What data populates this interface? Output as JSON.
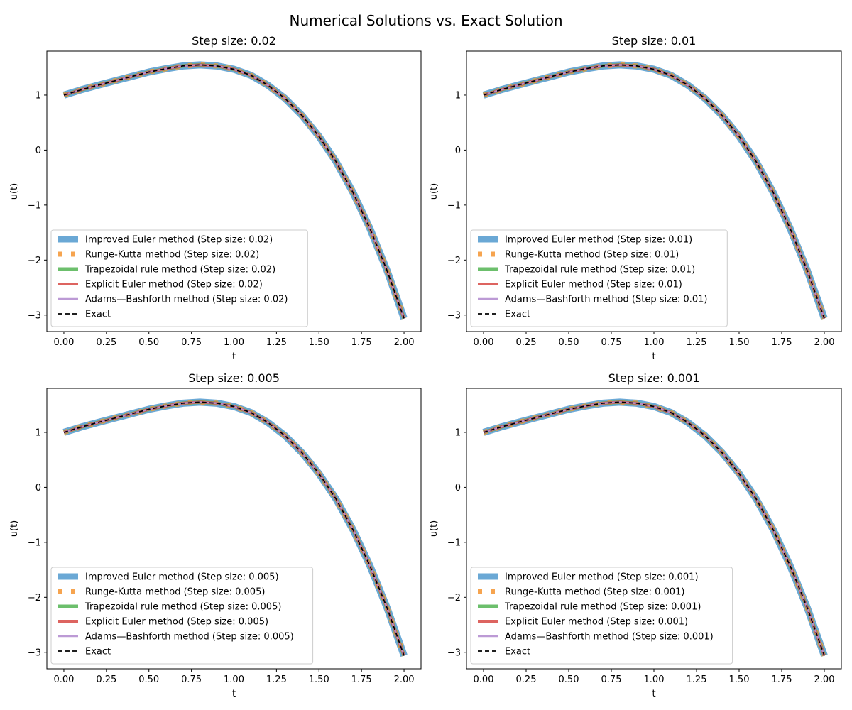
{
  "figure": {
    "title": "Numerical Solutions vs. Exact Solution"
  },
  "series_styles": [
    {
      "key": "improved_euler",
      "color": "#5a9fd0",
      "dash": "",
      "width": 10,
      "opacity": 0.9
    },
    {
      "key": "runge_kutta",
      "color": "#f59a3c",
      "dash": "6,12",
      "width": 7,
      "opacity": 0.9
    },
    {
      "key": "trapezoidal",
      "color": "#5cb85c",
      "dash": "",
      "width": 5,
      "opacity": 0.9
    },
    {
      "key": "explicit_euler",
      "color": "#d9534f",
      "dash": "",
      "width": 4,
      "opacity": 0.9
    },
    {
      "key": "adams_bashforth",
      "color": "#b58fd0",
      "dash": "",
      "width": 2.5,
      "opacity": 0.9
    },
    {
      "key": "exact",
      "color": "#000000",
      "dash": "6,4",
      "width": 1.8,
      "opacity": 1
    }
  ],
  "chart_data": [
    {
      "type": "line",
      "title": "Step size: 0.02",
      "xlabel": "t",
      "ylabel": "u(t)",
      "xlim": [
        -0.1,
        2.1
      ],
      "ylim": [
        -3.3,
        1.8
      ],
      "xticks": [
        0.0,
        0.25,
        0.5,
        0.75,
        1.0,
        1.25,
        1.5,
        1.75,
        2.0
      ],
      "xticklabels": [
        "0.00",
        "0.25",
        "0.50",
        "0.75",
        "1.00",
        "1.25",
        "1.50",
        "1.75",
        "2.00"
      ],
      "yticks": [
        1,
        0,
        -1,
        -2,
        -3
      ],
      "yticklabels": [
        "1",
        "0",
        "−1",
        "−2",
        "−3"
      ],
      "legend_position": "lower-left",
      "x": [
        0.0,
        0.1,
        0.2,
        0.3,
        0.4,
        0.5,
        0.6,
        0.7,
        0.8,
        0.9,
        1.0,
        1.1,
        1.2,
        1.3,
        1.4,
        1.5,
        1.6,
        1.7,
        1.8,
        1.9,
        2.0
      ],
      "series": [
        {
          "name": "Improved Euler method (Step size: 0.02)",
          "values": [
            1.0,
            1.095,
            1.18,
            1.26,
            1.34,
            1.42,
            1.48,
            1.53,
            1.55,
            1.53,
            1.47,
            1.36,
            1.18,
            0.94,
            0.63,
            0.25,
            -0.21,
            -0.77,
            -1.43,
            -2.19,
            -3.06
          ]
        },
        {
          "name": "Runge-Kutta method (Step size: 0.02)",
          "values": [
            1.0,
            1.095,
            1.18,
            1.26,
            1.34,
            1.42,
            1.48,
            1.53,
            1.55,
            1.53,
            1.47,
            1.36,
            1.18,
            0.94,
            0.63,
            0.25,
            -0.21,
            -0.77,
            -1.43,
            -2.19,
            -3.06
          ]
        },
        {
          "name": "Trapezoidal rule method (Step size: 0.02)",
          "values": [
            1.0,
            1.095,
            1.18,
            1.26,
            1.34,
            1.42,
            1.48,
            1.53,
            1.55,
            1.53,
            1.47,
            1.36,
            1.18,
            0.94,
            0.63,
            0.25,
            -0.21,
            -0.77,
            -1.43,
            -2.19,
            -3.06
          ]
        },
        {
          "name": "Explicit Euler method (Step size: 0.02)",
          "values": [
            1.0,
            1.095,
            1.18,
            1.26,
            1.34,
            1.42,
            1.48,
            1.53,
            1.55,
            1.53,
            1.47,
            1.36,
            1.18,
            0.94,
            0.63,
            0.25,
            -0.21,
            -0.77,
            -1.43,
            -2.19,
            -3.06
          ]
        },
        {
          "name": "Adams—Bashforth method (Step size: 0.02)",
          "values": [
            1.0,
            1.095,
            1.18,
            1.26,
            1.34,
            1.42,
            1.48,
            1.53,
            1.55,
            1.53,
            1.47,
            1.36,
            1.18,
            0.94,
            0.63,
            0.25,
            -0.21,
            -0.77,
            -1.43,
            -2.19,
            -3.06
          ]
        },
        {
          "name": "Exact",
          "values": [
            1.0,
            1.095,
            1.18,
            1.26,
            1.34,
            1.42,
            1.48,
            1.53,
            1.55,
            1.53,
            1.47,
            1.36,
            1.18,
            0.94,
            0.63,
            0.25,
            -0.21,
            -0.77,
            -1.43,
            -2.19,
            -3.06
          ]
        }
      ]
    },
    {
      "type": "line",
      "title": "Step size: 0.01",
      "xlabel": "t",
      "ylabel": "u(t)",
      "xlim": [
        -0.1,
        2.1
      ],
      "ylim": [
        -3.3,
        1.8
      ],
      "xticks": [
        0.0,
        0.25,
        0.5,
        0.75,
        1.0,
        1.25,
        1.5,
        1.75,
        2.0
      ],
      "xticklabels": [
        "0.00",
        "0.25",
        "0.50",
        "0.75",
        "1.00",
        "1.25",
        "1.50",
        "1.75",
        "2.00"
      ],
      "yticks": [
        1,
        0,
        -1,
        -2,
        -3
      ],
      "yticklabels": [
        "1",
        "0",
        "−1",
        "−2",
        "−3"
      ],
      "legend_position": "lower-left",
      "x": [
        0.0,
        0.1,
        0.2,
        0.3,
        0.4,
        0.5,
        0.6,
        0.7,
        0.8,
        0.9,
        1.0,
        1.1,
        1.2,
        1.3,
        1.4,
        1.5,
        1.6,
        1.7,
        1.8,
        1.9,
        2.0
      ],
      "series": [
        {
          "name": "Improved Euler method (Step size: 0.01)",
          "values": [
            1.0,
            1.095,
            1.18,
            1.26,
            1.34,
            1.42,
            1.48,
            1.53,
            1.55,
            1.53,
            1.47,
            1.36,
            1.18,
            0.94,
            0.63,
            0.25,
            -0.21,
            -0.77,
            -1.43,
            -2.19,
            -3.06
          ]
        },
        {
          "name": "Runge-Kutta method (Step size: 0.01)",
          "values": [
            1.0,
            1.095,
            1.18,
            1.26,
            1.34,
            1.42,
            1.48,
            1.53,
            1.55,
            1.53,
            1.47,
            1.36,
            1.18,
            0.94,
            0.63,
            0.25,
            -0.21,
            -0.77,
            -1.43,
            -2.19,
            -3.06
          ]
        },
        {
          "name": "Trapezoidal rule method (Step size: 0.01)",
          "values": [
            1.0,
            1.095,
            1.18,
            1.26,
            1.34,
            1.42,
            1.48,
            1.53,
            1.55,
            1.53,
            1.47,
            1.36,
            1.18,
            0.94,
            0.63,
            0.25,
            -0.21,
            -0.77,
            -1.43,
            -2.19,
            -3.06
          ]
        },
        {
          "name": "Explicit Euler method (Step size: 0.01)",
          "values": [
            1.0,
            1.095,
            1.18,
            1.26,
            1.34,
            1.42,
            1.48,
            1.53,
            1.55,
            1.53,
            1.47,
            1.36,
            1.18,
            0.94,
            0.63,
            0.25,
            -0.21,
            -0.77,
            -1.43,
            -2.19,
            -3.06
          ]
        },
        {
          "name": "Adams—Bashforth method (Step size: 0.01)",
          "values": [
            1.0,
            1.095,
            1.18,
            1.26,
            1.34,
            1.42,
            1.48,
            1.53,
            1.55,
            1.53,
            1.47,
            1.36,
            1.18,
            0.94,
            0.63,
            0.25,
            -0.21,
            -0.77,
            -1.43,
            -2.19,
            -3.06
          ]
        },
        {
          "name": "Exact",
          "values": [
            1.0,
            1.095,
            1.18,
            1.26,
            1.34,
            1.42,
            1.48,
            1.53,
            1.55,
            1.53,
            1.47,
            1.36,
            1.18,
            0.94,
            0.63,
            0.25,
            -0.21,
            -0.77,
            -1.43,
            -2.19,
            -3.06
          ]
        }
      ]
    },
    {
      "type": "line",
      "title": "Step size: 0.005",
      "xlabel": "t",
      "ylabel": "u(t)",
      "xlim": [
        -0.1,
        2.1
      ],
      "ylim": [
        -3.3,
        1.8
      ],
      "xticks": [
        0.0,
        0.25,
        0.5,
        0.75,
        1.0,
        1.25,
        1.5,
        1.75,
        2.0
      ],
      "xticklabels": [
        "0.00",
        "0.25",
        "0.50",
        "0.75",
        "1.00",
        "1.25",
        "1.50",
        "1.75",
        "2.00"
      ],
      "yticks": [
        1,
        0,
        -1,
        -2,
        -3
      ],
      "yticklabels": [
        "1",
        "0",
        "−1",
        "−2",
        "−3"
      ],
      "legend_position": "lower-left",
      "x": [
        0.0,
        0.1,
        0.2,
        0.3,
        0.4,
        0.5,
        0.6,
        0.7,
        0.8,
        0.9,
        1.0,
        1.1,
        1.2,
        1.3,
        1.4,
        1.5,
        1.6,
        1.7,
        1.8,
        1.9,
        2.0
      ],
      "series": [
        {
          "name": "Improved Euler method (Step size: 0.005)",
          "values": [
            1.0,
            1.095,
            1.18,
            1.26,
            1.34,
            1.42,
            1.48,
            1.53,
            1.55,
            1.53,
            1.47,
            1.36,
            1.18,
            0.94,
            0.63,
            0.25,
            -0.21,
            -0.77,
            -1.43,
            -2.19,
            -3.06
          ]
        },
        {
          "name": "Runge-Kutta method (Step size: 0.005)",
          "values": [
            1.0,
            1.095,
            1.18,
            1.26,
            1.34,
            1.42,
            1.48,
            1.53,
            1.55,
            1.53,
            1.47,
            1.36,
            1.18,
            0.94,
            0.63,
            0.25,
            -0.21,
            -0.77,
            -1.43,
            -2.19,
            -3.06
          ]
        },
        {
          "name": "Trapezoidal rule method (Step size: 0.005)",
          "values": [
            1.0,
            1.095,
            1.18,
            1.26,
            1.34,
            1.42,
            1.48,
            1.53,
            1.55,
            1.53,
            1.47,
            1.36,
            1.18,
            0.94,
            0.63,
            0.25,
            -0.21,
            -0.77,
            -1.43,
            -2.19,
            -3.06
          ]
        },
        {
          "name": "Explicit Euler method (Step size: 0.005)",
          "values": [
            1.0,
            1.095,
            1.18,
            1.26,
            1.34,
            1.42,
            1.48,
            1.53,
            1.55,
            1.53,
            1.47,
            1.36,
            1.18,
            0.94,
            0.63,
            0.25,
            -0.21,
            -0.77,
            -1.43,
            -2.19,
            -3.06
          ]
        },
        {
          "name": "Adams—Bashforth method (Step size: 0.005)",
          "values": [
            1.0,
            1.095,
            1.18,
            1.26,
            1.34,
            1.42,
            1.48,
            1.53,
            1.55,
            1.53,
            1.47,
            1.36,
            1.18,
            0.94,
            0.63,
            0.25,
            -0.21,
            -0.77,
            -1.43,
            -2.19,
            -3.06
          ]
        },
        {
          "name": "Exact",
          "values": [
            1.0,
            1.095,
            1.18,
            1.26,
            1.34,
            1.42,
            1.48,
            1.53,
            1.55,
            1.53,
            1.47,
            1.36,
            1.18,
            0.94,
            0.63,
            0.25,
            -0.21,
            -0.77,
            -1.43,
            -2.19,
            -3.06
          ]
        }
      ]
    },
    {
      "type": "line",
      "title": "Step size: 0.001",
      "xlabel": "t",
      "ylabel": "u(t)",
      "xlim": [
        -0.1,
        2.1
      ],
      "ylim": [
        -3.3,
        1.8
      ],
      "xticks": [
        0.0,
        0.25,
        0.5,
        0.75,
        1.0,
        1.25,
        1.5,
        1.75,
        2.0
      ],
      "xticklabels": [
        "0.00",
        "0.25",
        "0.50",
        "0.75",
        "1.00",
        "1.25",
        "1.50",
        "1.75",
        "2.00"
      ],
      "yticks": [
        1,
        0,
        -1,
        -2,
        -3
      ],
      "yticklabels": [
        "1",
        "0",
        "−1",
        "−2",
        "−3"
      ],
      "legend_position": "lower-left",
      "x": [
        0.0,
        0.1,
        0.2,
        0.3,
        0.4,
        0.5,
        0.6,
        0.7,
        0.8,
        0.9,
        1.0,
        1.1,
        1.2,
        1.3,
        1.4,
        1.5,
        1.6,
        1.7,
        1.8,
        1.9,
        2.0
      ],
      "series": [
        {
          "name": "Improved Euler method (Step size: 0.001)",
          "values": [
            1.0,
            1.095,
            1.18,
            1.26,
            1.34,
            1.42,
            1.48,
            1.53,
            1.55,
            1.53,
            1.47,
            1.36,
            1.18,
            0.94,
            0.63,
            0.25,
            -0.21,
            -0.77,
            -1.43,
            -2.19,
            -3.06
          ]
        },
        {
          "name": "Runge-Kutta method (Step size: 0.001)",
          "values": [
            1.0,
            1.095,
            1.18,
            1.26,
            1.34,
            1.42,
            1.48,
            1.53,
            1.55,
            1.53,
            1.47,
            1.36,
            1.18,
            0.94,
            0.63,
            0.25,
            -0.21,
            -0.77,
            -1.43,
            -2.19,
            -3.06
          ]
        },
        {
          "name": "Trapezoidal rule method (Step size: 0.001)",
          "values": [
            1.0,
            1.095,
            1.18,
            1.26,
            1.34,
            1.42,
            1.48,
            1.53,
            1.55,
            1.53,
            1.47,
            1.36,
            1.18,
            0.94,
            0.63,
            0.25,
            -0.21,
            -0.77,
            -1.43,
            -2.19,
            -3.06
          ]
        },
        {
          "name": "Explicit Euler method (Step size: 0.001)",
          "values": [
            1.0,
            1.095,
            1.18,
            1.26,
            1.34,
            1.42,
            1.48,
            1.53,
            1.55,
            1.53,
            1.47,
            1.36,
            1.18,
            0.94,
            0.63,
            0.25,
            -0.21,
            -0.77,
            -1.43,
            -2.19,
            -3.06
          ]
        },
        {
          "name": "Adams—Bashforth method (Step size: 0.001)",
          "values": [
            1.0,
            1.095,
            1.18,
            1.26,
            1.34,
            1.42,
            1.48,
            1.53,
            1.55,
            1.53,
            1.47,
            1.36,
            1.18,
            0.94,
            0.63,
            0.25,
            -0.21,
            -0.77,
            -1.43,
            -2.19,
            -3.06
          ]
        },
        {
          "name": "Exact",
          "values": [
            1.0,
            1.095,
            1.18,
            1.26,
            1.34,
            1.42,
            1.48,
            1.53,
            1.55,
            1.53,
            1.47,
            1.36,
            1.18,
            0.94,
            0.63,
            0.25,
            -0.21,
            -0.77,
            -1.43,
            -2.19,
            -3.06
          ]
        }
      ]
    }
  ]
}
